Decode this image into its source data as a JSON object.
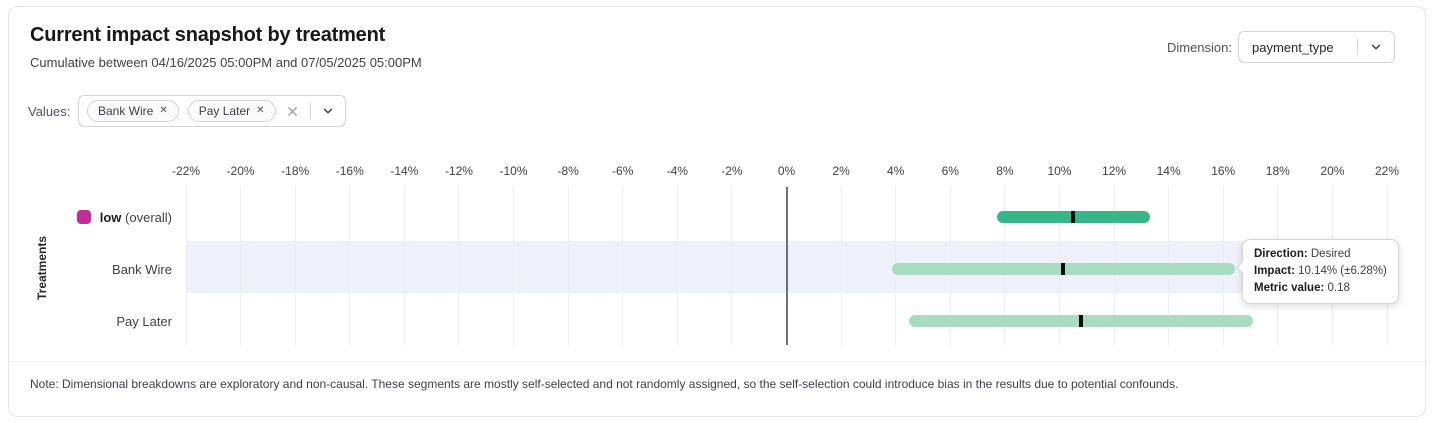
{
  "header": {
    "title": "Current impact snapshot by treatment",
    "subtitle": "Cumulative between 04/16/2025 05:00PM and 07/05/2025 05:00PM",
    "dimension_label": "Dimension:",
    "dimension_value": "payment_type"
  },
  "filters": {
    "values_label": "Values:",
    "chips": [
      {
        "label": "Bank Wire"
      },
      {
        "label": "Pay Later"
      }
    ]
  },
  "chart_data": {
    "type": "bar",
    "variant": "horizontal-interval",
    "title": "Current impact snapshot by treatment",
    "xlabel": "",
    "ylabel": "Treatments",
    "xlim": [
      -22,
      22
    ],
    "grid": true,
    "zero_line": true,
    "tick_values": [
      -22,
      -20,
      -18,
      -16,
      -14,
      -12,
      -10,
      -8,
      -6,
      -4,
      -2,
      0,
      2,
      4,
      6,
      8,
      10,
      12,
      14,
      16,
      18,
      20,
      22
    ],
    "tick_labels": [
      "-22%",
      "-20%",
      "-18%",
      "-16%",
      "-14%",
      "-12%",
      "-10%",
      "-8%",
      "-6%",
      "-4%",
      "-2%",
      "0%",
      "2%",
      "4%",
      "6%",
      "8%",
      "10%",
      "12%",
      "14%",
      "16%",
      "18%",
      "20%",
      "22%"
    ],
    "categories": [
      "low (overall)",
      "Bank Wire",
      "Pay Later"
    ],
    "series": [
      {
        "name": "impact_pct",
        "values": [
          10.5,
          10.14,
          10.8
        ]
      },
      {
        "name": "uncertainty_pct",
        "values": [
          2.8,
          6.28,
          6.3
        ]
      }
    ],
    "rows": [
      {
        "parts": [
          {
            "text": "low",
            "bold": true
          },
          {
            "text": " (overall)",
            "bold": false
          }
        ],
        "swatch": "#c52a9b",
        "impact": 10.5,
        "margin": 2.8,
        "color": "#34b789",
        "highlighted": false
      },
      {
        "parts": [
          {
            "text": "Bank Wire",
            "bold": false
          }
        ],
        "impact": 10.14,
        "margin": 6.28,
        "color": "#a8dcc0",
        "highlighted": true
      },
      {
        "parts": [
          {
            "text": "Pay Later",
            "bold": false
          }
        ],
        "impact": 10.8,
        "margin": 6.3,
        "color": "#a8dcc0",
        "highlighted": false
      }
    ],
    "colors": {
      "overall_bar": "#34b789",
      "segment_bar": "#a8dcc0",
      "legend_swatch": "#c52a9b",
      "highlight_band": "#eef0fa",
      "marker": "#0b0b0d"
    }
  },
  "tooltip": {
    "direction_label": "Direction:",
    "direction_value": "Desired",
    "impact_label": "Impact:",
    "impact_value": "10.14% (±6.28%)",
    "metric_label": "Metric value:",
    "metric_value": "0.18"
  },
  "note": "Note: Dimensional breakdowns are exploratory and non-causal. These segments are mostly self-selected and not randomly assigned, so the self-selection could introduce bias in the results due to potential confounds."
}
